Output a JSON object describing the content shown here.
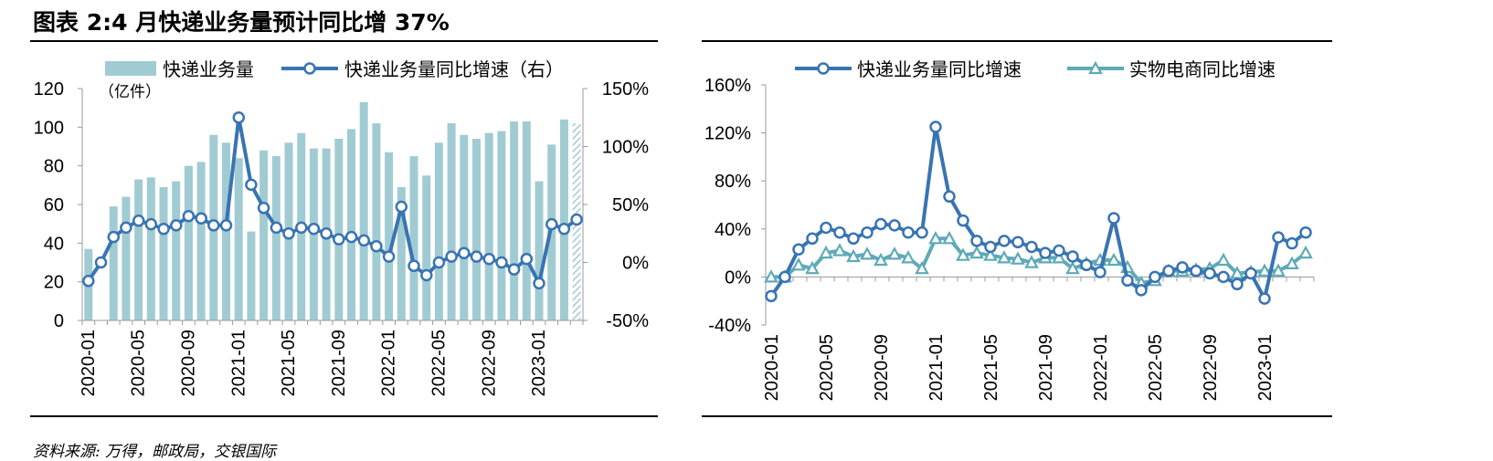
{
  "title": "图表 2:4 月快递业务量预计同比增 37%",
  "source": "资料来源: 万得，邮政局，交银国际",
  "colors": {
    "bar": "#a1cbd2",
    "line_dark": "#3974b2",
    "line_teal": "#5eaab7"
  },
  "chart_data": [
    {
      "type": "bar",
      "unit_label": "（亿件）",
      "x": [
        "2020-01",
        "2020-02",
        "2020-03",
        "2020-04",
        "2020-05",
        "2020-06",
        "2020-07",
        "2020-08",
        "2020-09",
        "2020-10",
        "2020-11",
        "2020-12",
        "2021-01",
        "2021-02",
        "2021-03",
        "2021-04",
        "2021-05",
        "2021-06",
        "2021-07",
        "2021-08",
        "2021-09",
        "2021-10",
        "2021-11",
        "2021-12",
        "2022-01",
        "2022-02",
        "2022-03",
        "2022-04",
        "2022-05",
        "2022-06",
        "2022-07",
        "2022-08",
        "2022-09",
        "2022-10",
        "2022-11",
        "2022-12",
        "2023-01",
        "2023-02",
        "2023-03",
        "2023-04"
      ],
      "x_tick_labels": [
        "2020-01",
        "2020-05",
        "2020-09",
        "2021-01",
        "2021-05",
        "2021-09",
        "2022-01",
        "2022-05",
        "2022-09",
        "2023-01"
      ],
      "y_left_ticks": [
        "0",
        "20",
        "40",
        "60",
        "80",
        "100",
        "120"
      ],
      "y_right_ticks": [
        "-50%",
        "0%",
        "50%",
        "100%",
        "150%"
      ],
      "ylim_left": [
        0,
        120
      ],
      "ylim_right": [
        -50,
        150
      ],
      "forecast_last_bar": true,
      "series": [
        {
          "name": "快递业务量",
          "kind": "bar",
          "axis": "left",
          "values": [
            37,
            0,
            59,
            64,
            73,
            74,
            69,
            72,
            80,
            82,
            96,
            92,
            84,
            46,
            88,
            85,
            92,
            97,
            89,
            89,
            94,
            99,
            113,
            102,
            87,
            69,
            85,
            75,
            92,
            102,
            96,
            94,
            97,
            98,
            103,
            103,
            72,
            91,
            104,
            102
          ]
        },
        {
          "name": "快递业务量同比增速（右）",
          "kind": "line",
          "axis": "right",
          "values": [
            -16,
            0,
            22,
            30,
            36,
            33,
            29,
            32,
            40,
            38,
            32,
            32,
            125,
            67,
            47,
            30,
            25,
            30,
            29,
            25,
            20,
            22,
            19,
            14,
            5,
            48,
            -3,
            -11,
            0,
            5,
            8,
            5,
            3,
            0,
            -6,
            3,
            -18,
            33,
            29,
            37
          ]
        }
      ]
    },
    {
      "type": "line",
      "x": [
        "2020-01",
        "2020-02",
        "2020-03",
        "2020-04",
        "2020-05",
        "2020-06",
        "2020-07",
        "2020-08",
        "2020-09",
        "2020-10",
        "2020-11",
        "2020-12",
        "2021-01",
        "2021-02",
        "2021-03",
        "2021-04",
        "2021-05",
        "2021-06",
        "2021-07",
        "2021-08",
        "2021-09",
        "2021-10",
        "2021-11",
        "2021-12",
        "2022-01",
        "2022-02",
        "2022-03",
        "2022-04",
        "2022-05",
        "2022-06",
        "2022-07",
        "2022-08",
        "2022-09",
        "2022-10",
        "2022-11",
        "2022-12",
        "2023-01",
        "2023-02",
        "2023-03",
        "2023-04"
      ],
      "x_tick_labels": [
        "2020-01",
        "2020-05",
        "2020-09",
        "2021-01",
        "2021-05",
        "2021-09",
        "2022-01",
        "2022-05",
        "2022-09",
        "2023-01"
      ],
      "y_ticks": [
        "-40%",
        "0%",
        "40%",
        "80%",
        "120%",
        "160%"
      ],
      "ylim": [
        -40,
        160
      ],
      "series": [
        {
          "name": "快递业务量同比增速",
          "marker": "circle",
          "values": [
            -16,
            0,
            23,
            32,
            41,
            37,
            32,
            37,
            44,
            43,
            37,
            37,
            125,
            67,
            47,
            30,
            25,
            30,
            29,
            25,
            20,
            22,
            17,
            10,
            4,
            49,
            -3,
            -11,
            0,
            5,
            8,
            5,
            3,
            0,
            -6,
            3,
            -18,
            33,
            28,
            37
          ]
        },
        {
          "name": "实物电商同比增速",
          "marker": "triangle",
          "values": [
            0,
            0,
            10,
            7,
            20,
            22,
            17,
            19,
            14,
            19,
            16,
            7,
            32,
            32,
            18,
            20,
            18,
            16,
            15,
            12,
            16,
            16,
            7,
            11,
            14,
            14,
            8,
            -5,
            -3,
            5,
            5,
            6,
            7,
            14,
            3,
            4,
            5,
            5,
            11,
            20
          ]
        }
      ]
    }
  ]
}
